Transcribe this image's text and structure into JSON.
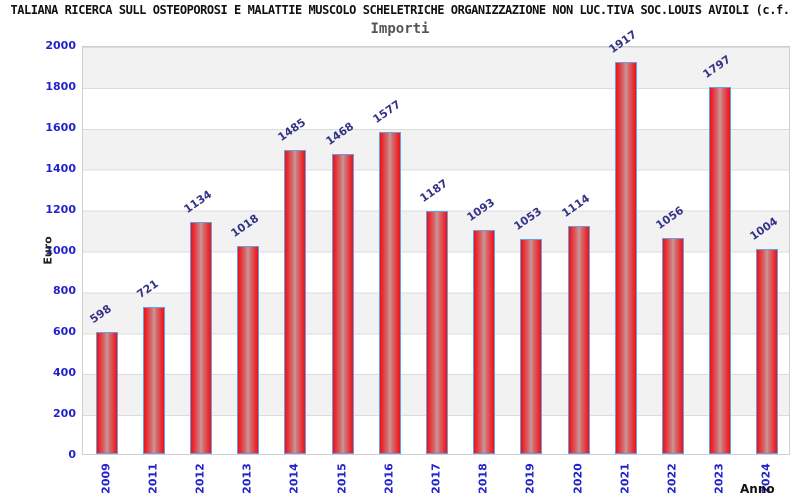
{
  "header": {
    "title": "TALIANA RICERCA SULL OSTEOPOROSI E MALATTIE MUSCOLO SCHELETRICHE ORGANIZZAZIONE NON LUC.TIVA SOC.LOUIS AVIOLI (c.f.",
    "subtitle": "Importi"
  },
  "colors": {
    "bar_edge_red": "#e8151c",
    "bar_center": "#c9999a",
    "bar_border_blue": "#63a0e4",
    "value_label": "#333388",
    "axis_tick_blue": "#2222cc",
    "band_gray": "#f2f2f2",
    "gridline": "#dcdcdc",
    "title_black": "#111111",
    "subtitle_gray": "#555555"
  },
  "chart_data": {
    "type": "bar",
    "title": "Importi",
    "categories": [
      "2009",
      "2011",
      "2012",
      "2013",
      "2014",
      "2015",
      "2016",
      "2017",
      "2018",
      "2019",
      "2020",
      "2021",
      "2022",
      "2023",
      "2024"
    ],
    "values": [
      598,
      721,
      1134,
      1018,
      1485,
      1468,
      1577,
      1187,
      1093,
      1053,
      1114,
      1917,
      1056,
      1797,
      1004
    ],
    "xlabel": "Anno",
    "ylabel": "Euro",
    "ylim": [
      0,
      2000
    ],
    "yticks": [
      0,
      200,
      400,
      600,
      800,
      1000,
      1200,
      1400,
      1600,
      1800,
      2000
    ],
    "grid": true,
    "legend": "none",
    "background_bands": "alternating gray/white every 200"
  }
}
